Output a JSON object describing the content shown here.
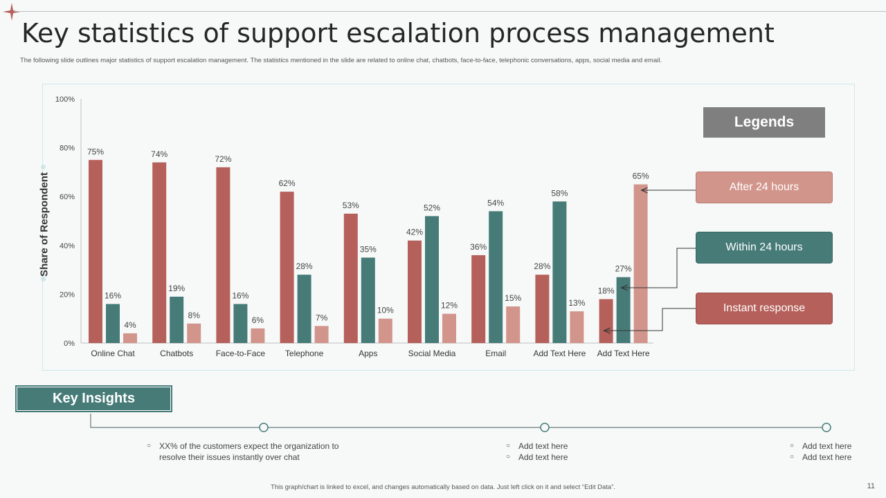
{
  "slide": {
    "title": "Key statistics of support escalation process management",
    "subtitle": "The following slide outlines major statistics of support escalation management. The statistics mentioned in the slide are related to online chat, chatbots, face-to-face, telephonic conversations, apps, social media and email.",
    "footer": "This graph/chart is linked to excel, and changes automatically based on data. Just left click on it and select “Edit Data”.",
    "page_number": "11"
  },
  "legend": {
    "heading": "Legends",
    "items": [
      "After 24 hours",
      "Within 24 hours",
      "Instant response"
    ]
  },
  "insights": {
    "heading": "Key Insights",
    "notes": [
      [
        "XX%  of the customers expect the organization to",
        "resolve their issues instantly over chat"
      ],
      [
        "Add text here",
        "Add text here"
      ],
      [
        "Add text here",
        "Add text here"
      ]
    ]
  },
  "colors": {
    "instant": "#b5605a",
    "within": "#467b78",
    "after": "#d2958c",
    "teal": "#467b78"
  },
  "chart_data": {
    "type": "bar",
    "ylabel": "Share of Respondent",
    "ylim": [
      0,
      100
    ],
    "yticks": [
      "0%",
      "20%",
      "40%",
      "60%",
      "80%",
      "100%"
    ],
    "categories": [
      "Online Chat",
      "Chatbots",
      "Face-to-Face",
      "Telephone",
      "Apps",
      "Social Media",
      "Email",
      "Add Text Here",
      "Add Text Here"
    ],
    "series": [
      {
        "name": "Instant response",
        "values": [
          75,
          74,
          72,
          62,
          53,
          42,
          36,
          28,
          18
        ]
      },
      {
        "name": "Within 24 hours",
        "values": [
          16,
          19,
          16,
          28,
          35,
          52,
          54,
          58,
          27
        ]
      },
      {
        "name": "After 24 hours",
        "values": [
          4,
          8,
          6,
          7,
          10,
          12,
          15,
          13,
          65
        ]
      }
    ]
  }
}
